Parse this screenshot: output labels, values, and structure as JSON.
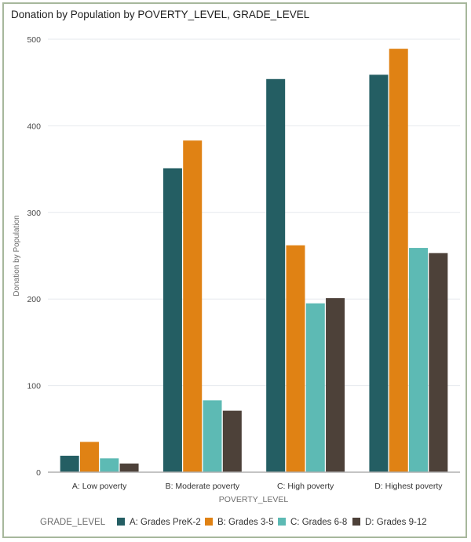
{
  "chart_data": {
    "type": "bar",
    "title": "Donation by Population by POVERTY_LEVEL, GRADE_LEVEL",
    "xlabel": "POVERTY_LEVEL",
    "ylabel": "Donation by Population",
    "ylim": [
      0,
      500
    ],
    "yticks": [
      0,
      100,
      200,
      300,
      400,
      500
    ],
    "grid": true,
    "legend_title": "GRADE_LEVEL",
    "legend_position": "bottom",
    "categories": [
      "A: Low poverty",
      "B: Moderate poverty",
      "C: High poverty",
      "D: Highest poverty"
    ],
    "series": [
      {
        "name": "A: Grades PreK-2",
        "color": "#245e63",
        "values": [
          19,
          351,
          454,
          459
        ]
      },
      {
        "name": "B: Grades 3-5",
        "color": "#e08214",
        "values": [
          35,
          383,
          262,
          489
        ]
      },
      {
        "name": "C: Grades 6-8",
        "color": "#5dbab4",
        "values": [
          16,
          83,
          195,
          259
        ]
      },
      {
        "name": "D: Grades 9-12",
        "color": "#4d4139",
        "values": [
          10,
          71,
          201,
          253
        ]
      }
    ]
  }
}
